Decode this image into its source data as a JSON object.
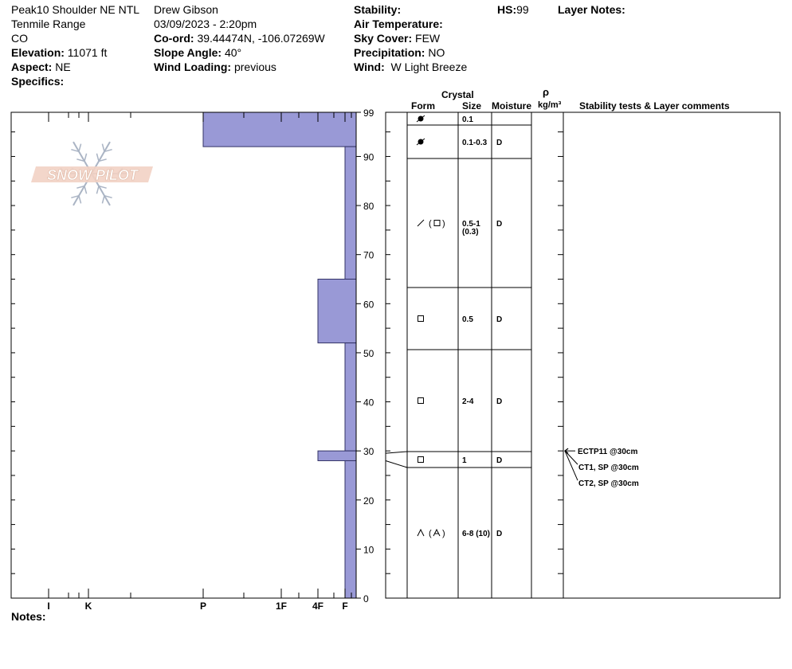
{
  "header": {
    "site_name": "Peak10 Shoulder NE NTL",
    "range": "Tenmile Range",
    "state": "CO",
    "elevation_label": "Elevation:",
    "elevation_value": "11071 ft",
    "aspect_label": "Aspect:",
    "aspect_value": "NE",
    "specifics_label": "Specifics:",
    "observer": "Drew Gibson",
    "datetime": "03/09/2023 - 2:20pm",
    "coord_label": "Co-ord:",
    "coord_value": "39.44474N, -106.07269W",
    "slope_label": "Slope Angle:",
    "slope_value": "40°",
    "wind_loading_label": "Wind Loading:",
    "wind_loading_value": "previous",
    "stability_label": "Stability:",
    "air_temp_label": "Air Temperature:",
    "sky_cover_label": "Sky Cover:",
    "sky_cover_value": "FEW",
    "precip_label": "Precipitation:",
    "precip_value": "NO",
    "wind_label": "Wind:",
    "wind_value": "W Light Breeze",
    "hs_label": "HS:",
    "hs_value": "99",
    "layer_notes_label": "Layer Notes:",
    "notes_label": "Notes:"
  },
  "logo_text": "SNOW PILOT",
  "columns": {
    "crystal": "Crystal",
    "form": "Form",
    "size": "Size",
    "moisture": "Moisture",
    "rho": "ρ",
    "density_unit": "kg/m³",
    "stability": "Stability tests & Layer comments"
  },
  "colors": {
    "bar": "#9999d6",
    "bar_stroke": "#333366",
    "line": "#000000"
  },
  "chart_data": {
    "type": "bar",
    "orientation": "horizontal",
    "title": "",
    "y_axis": {
      "min": 0,
      "max": 99,
      "ticks": [
        "0",
        "10",
        "20",
        "30",
        "40",
        "50",
        "60",
        "70",
        "80",
        "90",
        "99"
      ]
    },
    "hardness_scale": [
      "I",
      "K",
      "P",
      "1F",
      "4F",
      "F"
    ],
    "hardness_scale_values": {
      "F": 1,
      "4F": 2,
      "1F": 3,
      "P": 4,
      "K": 5,
      "I": 6
    },
    "layers": [
      {
        "top": 99,
        "bottom": 92,
        "hardness": "P",
        "hardness_value": 4,
        "form": "ice-crust-dot",
        "size": "0.1",
        "moisture": ""
      },
      {
        "top": 92,
        "bottom": 65,
        "hardness": "F",
        "hardness_value": 1,
        "form": "facet-mixed",
        "size": "0.1-0.3",
        "moisture": "D"
      },
      {
        "top": 65,
        "bottom": 52,
        "hardness": "4F",
        "hardness_value": 2,
        "form": "facet",
        "size": "0.5-1 (0.3)",
        "moisture": "D"
      },
      {
        "top": 52,
        "bottom": 30,
        "hardness": "F",
        "hardness_value": 1,
        "form": "facet",
        "size": "0.5",
        "moisture": "D"
      },
      {
        "top": 30,
        "bottom": 28,
        "hardness": "4F",
        "hardness_value": 2,
        "form": "facet",
        "size": "2-4",
        "moisture": "D"
      },
      {
        "top": 28,
        "bottom": 0,
        "hardness": "F",
        "hardness_value": 1,
        "form": "depth-hoar",
        "size": "1",
        "moisture": "D"
      }
    ],
    "table_rows": [
      {
        "top": 99,
        "bottom": 96,
        "form": "ice-crust-dot",
        "size": "0.1",
        "size2": "",
        "moisture": ""
      },
      {
        "top": 96,
        "bottom": 92,
        "form": "ice-crust-dot",
        "size": "0.1-0.3",
        "size2": "",
        "moisture": "D"
      },
      {
        "top": 92,
        "bottom": 65,
        "form": "facet-mixed",
        "size": "0.5-1",
        "size2": "(0.3)",
        "moisture": "D"
      },
      {
        "top": 65,
        "bottom": 52,
        "form": "facet",
        "size": "0.5",
        "size2": "",
        "moisture": "D"
      },
      {
        "top": 52,
        "bottom": 30.5,
        "form": "facet",
        "size": "2-4",
        "size2": "",
        "moisture": "D"
      },
      {
        "top": 30.5,
        "bottom": 27.5,
        "form": "facet",
        "size": "1",
        "size2": "",
        "moisture": "D"
      },
      {
        "top": 27.5,
        "bottom": 0,
        "form": "depth-hoar-mixed",
        "size": "6-8 (10)",
        "size2": "",
        "moisture": "D"
      }
    ],
    "stability_tests": [
      {
        "label": "ECTP11 @30cm",
        "depth": 30
      },
      {
        "label": "CT1, SP @30cm",
        "depth": 30
      },
      {
        "label": "CT2, SP @30cm",
        "depth": 30
      }
    ]
  }
}
